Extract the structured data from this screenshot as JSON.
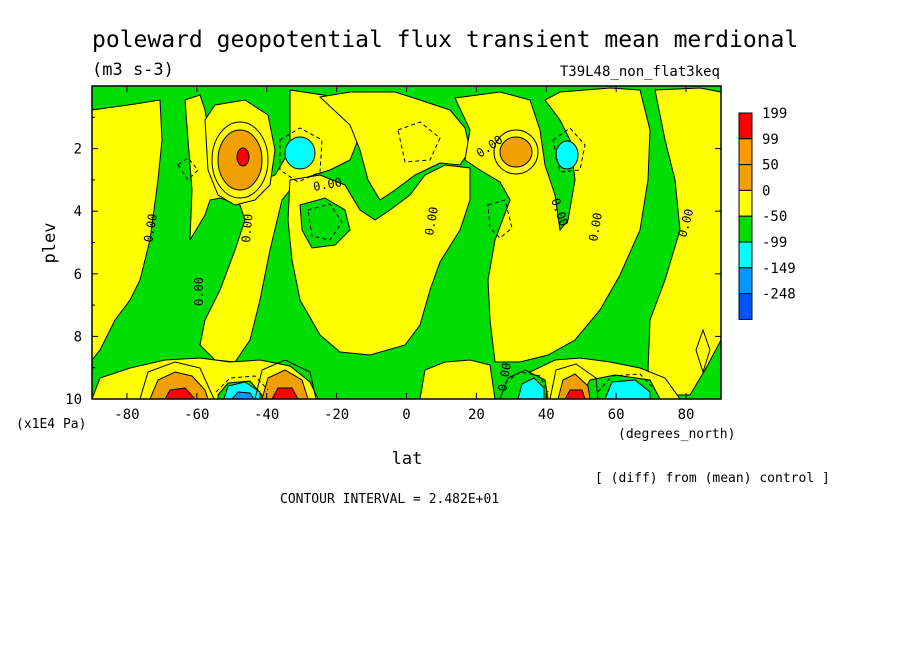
{
  "chart_data": {
    "type": "contour",
    "title": "poleward geopotential flux transient mean merdional",
    "units": "(m3 s-3)",
    "run": "T39L48_non_flat3keq",
    "xlabel": "lat",
    "x_units": "(degrees_north)",
    "ylabel": "plev",
    "y_units": "(x1E4 Pa)",
    "xlim": [
      -90,
      90
    ],
    "ylim": [
      10,
      0
    ],
    "x_ticks": [
      "-80",
      "-60",
      "-40",
      "-20",
      "0",
      "20",
      "40",
      "60",
      "80"
    ],
    "x_tick_values": [
      -80,
      -60,
      -40,
      -20,
      0,
      20,
      40,
      60,
      80
    ],
    "y_ticks": [
      "2",
      "4",
      "6",
      "8",
      "10"
    ],
    "y_tick_values": [
      2,
      4,
      6,
      8,
      10
    ],
    "contour_interval_text": "CONTOUR INTERVAL = 2.482E+01",
    "comparison_text": "[ (diff) from (mean) control ]",
    "contour_label": "0.00",
    "legend": {
      "labels": [
        "199",
        "99",
        "50",
        "0",
        "-50",
        "-99",
        "-149",
        "-248"
      ],
      "colors": [
        "#ff0000",
        "#ff9900",
        "#f0a000",
        "#ffff00",
        "#00dd00",
        "#00ffff",
        "#0099ff",
        "#0055ff"
      ]
    },
    "fill_colors": {
      "green": "#00dd00",
      "yellow": "#ffff00",
      "orange": "#f0a000",
      "red": "#ff0000",
      "cyan": "#00ffff",
      "blue": "#0099ff"
    },
    "regions": [
      {
        "kind": "positive_max",
        "lat": -45,
        "plev": 2.4,
        "level": "199"
      },
      {
        "kind": "negative_min",
        "lat": -35,
        "plev": 2.3,
        "level": "-50"
      },
      {
        "kind": "positive_max",
        "lat": 32,
        "plev": 2.2,
        "level": "50"
      },
      {
        "kind": "negative_min",
        "lat": 45,
        "plev": 2.3,
        "level": "-50"
      },
      {
        "kind": "surface_dipole",
        "lat": [
          -62,
          -48,
          -36
        ],
        "levels": [
          "199",
          "-149",
          "199"
        ]
      },
      {
        "kind": "surface_dipole",
        "lat": [
          37,
          45,
          60
        ],
        "levels": [
          "-99",
          "199",
          "-99"
        ]
      }
    ]
  }
}
